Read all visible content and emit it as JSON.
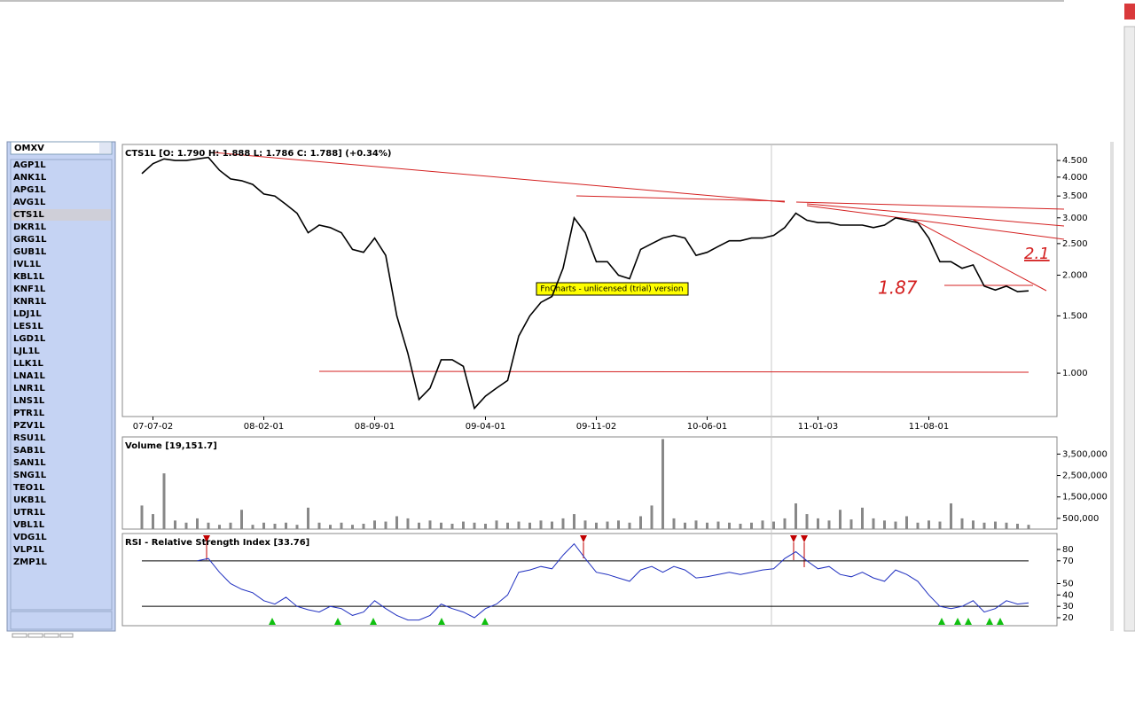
{
  "sidebar": {
    "dropdown": "OMXV",
    "tickers": [
      "AGP1L",
      "ANK1L",
      "APG1L",
      "AVG1L",
      "CTS1L",
      "DKR1L",
      "GRG1L",
      "GUB1L",
      "IVL1L",
      "KBL1L",
      "KNF1L",
      "KNR1L",
      "LDJ1L",
      "LES1L",
      "LGD1L",
      "LJL1L",
      "LLK1L",
      "LNA1L",
      "LNR1L",
      "LNS1L",
      "PTR1L",
      "PZV1L",
      "RSU1L",
      "SAB1L",
      "SAN1L",
      "SNG1L",
      "TEO1L",
      "UKB1L",
      "UTR1L",
      "VBL1L",
      "VDG1L",
      "VLP1L",
      "ZMP1L"
    ],
    "selected": 4
  },
  "watermark": "FnCharts - unlicensed (trial) version",
  "annotations": [
    "1.87",
    "2.1"
  ],
  "chart_data": [
    {
      "type": "line",
      "title": "CTS1L [O: 1.790  H: 1.888  L: 1.786  C: 1.788] (+0.34%)",
      "log": true,
      "categories": [
        null,
        "07-07-02",
        null,
        null,
        null,
        null,
        null,
        null,
        null,
        null,
        null,
        "08-02-01",
        null,
        null,
        null,
        null,
        null,
        null,
        null,
        null,
        null,
        "08-09-01",
        null,
        null,
        null,
        null,
        null,
        null,
        null,
        null,
        null,
        "09-04-01",
        null,
        null,
        null,
        null,
        null,
        null,
        null,
        null,
        null,
        "09-11-02",
        null,
        null,
        null,
        null,
        null,
        null,
        null,
        null,
        null,
        "10-06-01",
        null,
        null,
        null,
        null,
        null,
        null,
        null,
        null,
        null,
        "11-01-03",
        null,
        null,
        null,
        null,
        null,
        null,
        null,
        null,
        null,
        "11-08-01",
        null,
        null,
        null,
        null,
        null,
        null,
        null,
        null,
        null
      ],
      "series": [
        {
          "name": "CTS1L",
          "color": "#000000",
          "values": [
            4.1,
            4.4,
            4.55,
            4.5,
            4.5,
            4.55,
            4.6,
            4.2,
            3.95,
            3.9,
            3.8,
            3.55,
            3.5,
            3.3,
            3.1,
            2.7,
            2.85,
            2.8,
            2.7,
            2.4,
            2.35,
            2.6,
            2.3,
            1.5,
            1.15,
            0.83,
            0.9,
            1.1,
            1.1,
            1.05,
            0.78,
            0.85,
            0.9,
            0.95,
            1.3,
            1.5,
            1.65,
            1.72,
            2.1,
            3.0,
            2.7,
            2.2,
            2.2,
            2.0,
            1.95,
            2.4,
            2.5,
            2.6,
            2.65,
            2.6,
            2.3,
            2.35,
            2.45,
            2.55,
            2.55,
            2.6,
            2.6,
            2.65,
            2.8,
            3.1,
            2.95,
            2.9,
            2.9,
            2.85,
            2.85,
            2.85,
            2.8,
            2.85,
            3.0,
            2.95,
            2.9,
            2.6,
            2.2,
            2.2,
            2.1,
            2.15,
            1.85,
            1.8,
            1.85,
            1.78,
            1.79
          ]
        }
      ],
      "ylim": [
        0.736,
        5.04
      ],
      "yticks": [
        {
          "value": 1.0,
          "label": "1.000"
        },
        {
          "value": 1.5,
          "label": "1.500"
        },
        {
          "value": 2.0,
          "label": "2.000"
        },
        {
          "value": 2.5,
          "label": "2.500"
        },
        {
          "value": 3.0,
          "label": "3.000"
        },
        {
          "value": 3.5,
          "label": "3.500"
        },
        {
          "value": 4.0,
          "label": "4.000"
        },
        {
          "value": 4.5,
          "label": "4.500"
        }
      ]
    },
    {
      "type": "bar",
      "title": "Volume [19,151.7]",
      "color": "#888888",
      "values": [
        1100000,
        700000,
        2600000,
        400000,
        300000,
        500000,
        300000,
        200000,
        300000,
        900000,
        200000,
        300000,
        250000,
        300000,
        200000,
        1000000,
        300000,
        200000,
        300000,
        200000,
        250000,
        400000,
        350000,
        600000,
        500000,
        300000,
        400000,
        300000,
        250000,
        350000,
        300000,
        250000,
        400000,
        300000,
        350000,
        300000,
        400000,
        350000,
        500000,
        700000,
        400000,
        300000,
        350000,
        400000,
        300000,
        600000,
        1100000,
        4200000,
        500000,
        300000,
        400000,
        300000,
        350000,
        300000,
        250000,
        300000,
        400000,
        350000,
        500000,
        1200000,
        700000,
        500000,
        400000,
        900000,
        450000,
        1000000,
        500000,
        400000,
        350000,
        600000,
        300000,
        400000,
        350000,
        1200000,
        500000,
        400000,
        300000,
        350000,
        300000,
        250000,
        200000
      ],
      "ylim": [
        0,
        4300000
      ],
      "yticks": [
        {
          "value": 500000,
          "label": "500,000"
        },
        {
          "value": 1500000,
          "label": "1,500,000"
        },
        {
          "value": 2500000,
          "label": "2,500,000"
        },
        {
          "value": 3500000,
          "label": "3,500,000"
        }
      ]
    },
    {
      "type": "line",
      "title": "RSI - Relative Strength Index [33.76]",
      "series": [
        {
          "name": "RSI",
          "color": "#2030c0",
          "values": [
            null,
            null,
            null,
            null,
            null,
            70,
            72,
            60,
            50,
            45,
            42,
            35,
            32,
            38,
            30,
            27,
            25,
            30,
            28,
            22,
            25,
            35,
            28,
            22,
            18,
            18,
            22,
            32,
            28,
            25,
            20,
            28,
            32,
            40,
            60,
            62,
            65,
            63,
            75,
            85,
            72,
            60,
            58,
            55,
            52,
            62,
            65,
            60,
            65,
            62,
            55,
            56,
            58,
            60,
            58,
            60,
            62,
            63,
            72,
            78,
            70,
            63,
            65,
            58,
            56,
            60,
            55,
            52,
            62,
            58,
            52,
            40,
            30,
            28,
            30,
            35,
            25,
            28,
            35,
            32,
            33
          ]
        }
      ],
      "ylim": [
        13,
        94
      ],
      "reference_lines": [
        70,
        30
      ],
      "yticks": [
        20,
        30,
        40,
        50,
        70,
        80
      ]
    }
  ]
}
